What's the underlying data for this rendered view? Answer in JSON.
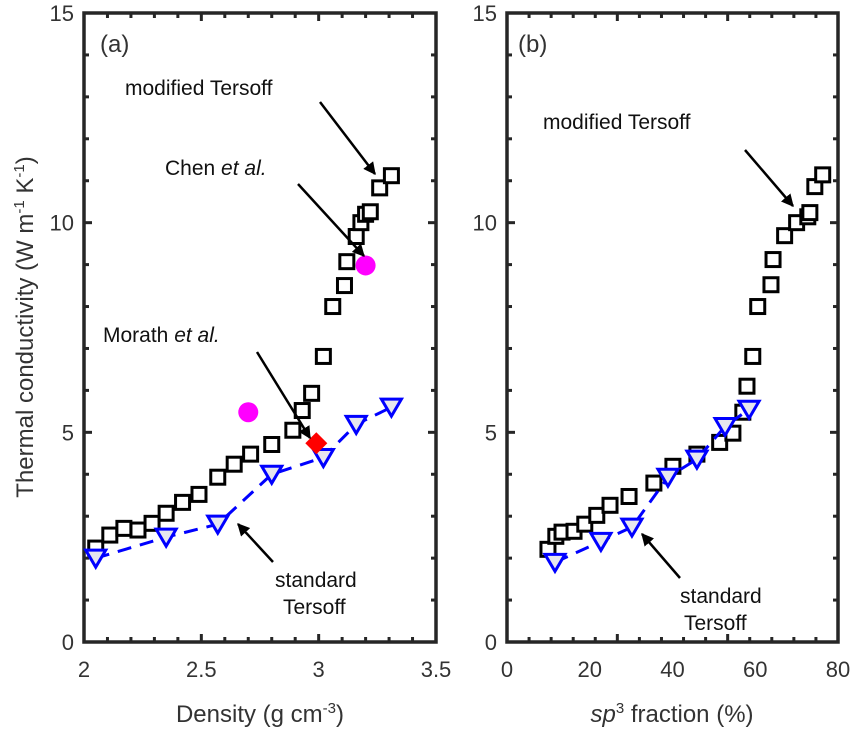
{
  "chart_data": [
    {
      "type": "scatter",
      "panel_label": "(a)",
      "xlabel": "Density (g cm",
      "xlabel_sup": "-3",
      "xlabel_end": ")",
      "ylabel": "Thermal conductivity (W m",
      "ylabel_sup1": "-1",
      "ylabel_mid": " K",
      "ylabel_sup2": "-1",
      "ylabel_end": ")",
      "xlim": [
        2,
        3.5
      ],
      "ylim": [
        0,
        15
      ],
      "xticks": [
        "2",
        "2.5",
        "3",
        "3.5"
      ],
      "xtick_values": [
        2,
        2.5,
        3,
        3.5
      ],
      "yticks": [
        "0",
        "5",
        "10",
        "15"
      ],
      "ytick_values": [
        0,
        5,
        10,
        15
      ],
      "series": [
        {
          "name": "modified Tersoff",
          "marker": "square",
          "color": "#000000",
          "x": [
            2.05,
            2.11,
            2.17,
            2.23,
            2.29,
            2.35,
            2.42,
            2.49,
            2.57,
            2.64,
            2.71,
            2.8,
            2.89,
            2.93,
            2.97,
            3.02,
            3.06,
            3.11,
            3.12,
            3.16,
            3.18,
            3.2,
            3.22,
            3.26,
            3.31
          ],
          "y": [
            2.24,
            2.55,
            2.71,
            2.67,
            2.83,
            3.07,
            3.33,
            3.52,
            3.93,
            4.24,
            4.48,
            4.71,
            5.05,
            5.52,
            5.93,
            6.81,
            8.0,
            8.5,
            9.07,
            9.67,
            10.0,
            10.2,
            10.26,
            10.83,
            11.12
          ]
        },
        {
          "name": "standard Tersoff",
          "marker": "triangle-down",
          "color": "#0000ff",
          "line": "dashed",
          "x": [
            2.05,
            2.35,
            2.57,
            2.8,
            3.02,
            3.16,
            3.31
          ],
          "y": [
            2.0,
            2.5,
            2.81,
            4.0,
            4.4,
            5.19,
            5.6
          ]
        },
        {
          "name": "Chen et al.",
          "marker": "circle",
          "color": "#ff00ff",
          "x": [
            2.7,
            3.2
          ],
          "y": [
            5.48,
            8.98
          ]
        },
        {
          "name": "Morath et al.",
          "marker": "diamond",
          "color": "#ff0000",
          "x": [
            2.99
          ],
          "y": [
            4.74
          ]
        }
      ],
      "annotations": [
        {
          "text": "modified Tersoff"
        },
        {
          "text": "Chen ",
          "italic": "et al."
        },
        {
          "text": "Morath ",
          "italic": "et al."
        },
        {
          "text": "standard",
          "text2": "Tersoff"
        }
      ]
    },
    {
      "type": "scatter",
      "panel_label": "(b)",
      "xlabel_italic": "sp",
      "xlabel_sup": "3",
      "xlabel": " fraction (%)",
      "xlim": [
        0,
        80
      ],
      "ylim": [
        0,
        15
      ],
      "xticks": [
        "0",
        "20",
        "40",
        "60",
        "80"
      ],
      "xtick_values": [
        0,
        20,
        40,
        60,
        80
      ],
      "yticks": [
        "0",
        "5",
        "10",
        "15"
      ],
      "ytick_values": [
        0,
        5,
        10,
        15
      ],
      "series": [
        {
          "name": "modified Tersoff",
          "marker": "square",
          "color": "#000000",
          "x": [
            9.9,
            11.8,
            13.3,
            16.2,
            18.8,
            21.7,
            24.9,
            29.5,
            35.5,
            40.1,
            45.9,
            51.4,
            54.6,
            57.0,
            58.0,
            59.4,
            60.6,
            63.8,
            64.3,
            67.1,
            70.0,
            72.7,
            73.2,
            74.4,
            76.3
          ],
          "y": [
            2.21,
            2.52,
            2.62,
            2.64,
            2.81,
            3.02,
            3.26,
            3.47,
            3.79,
            4.19,
            4.48,
            4.76,
            4.98,
            5.48,
            6.1,
            6.81,
            8.0,
            8.52,
            9.12,
            9.69,
            10.0,
            10.14,
            10.24,
            10.86,
            11.14
          ]
        },
        {
          "name": "standard Tersoff",
          "marker": "triangle-down",
          "color": "#0000ff",
          "line": "dashed",
          "x": [
            11.6,
            22.7,
            30.2,
            38.9,
            45.9,
            52.7,
            58.5
          ],
          "y": [
            1.9,
            2.4,
            2.74,
            3.93,
            4.36,
            5.14,
            5.55
          ]
        }
      ],
      "annotations": [
        {
          "text": "modified Tersoff"
        },
        {
          "text": "standard",
          "text2": "Tersoff"
        }
      ]
    }
  ]
}
